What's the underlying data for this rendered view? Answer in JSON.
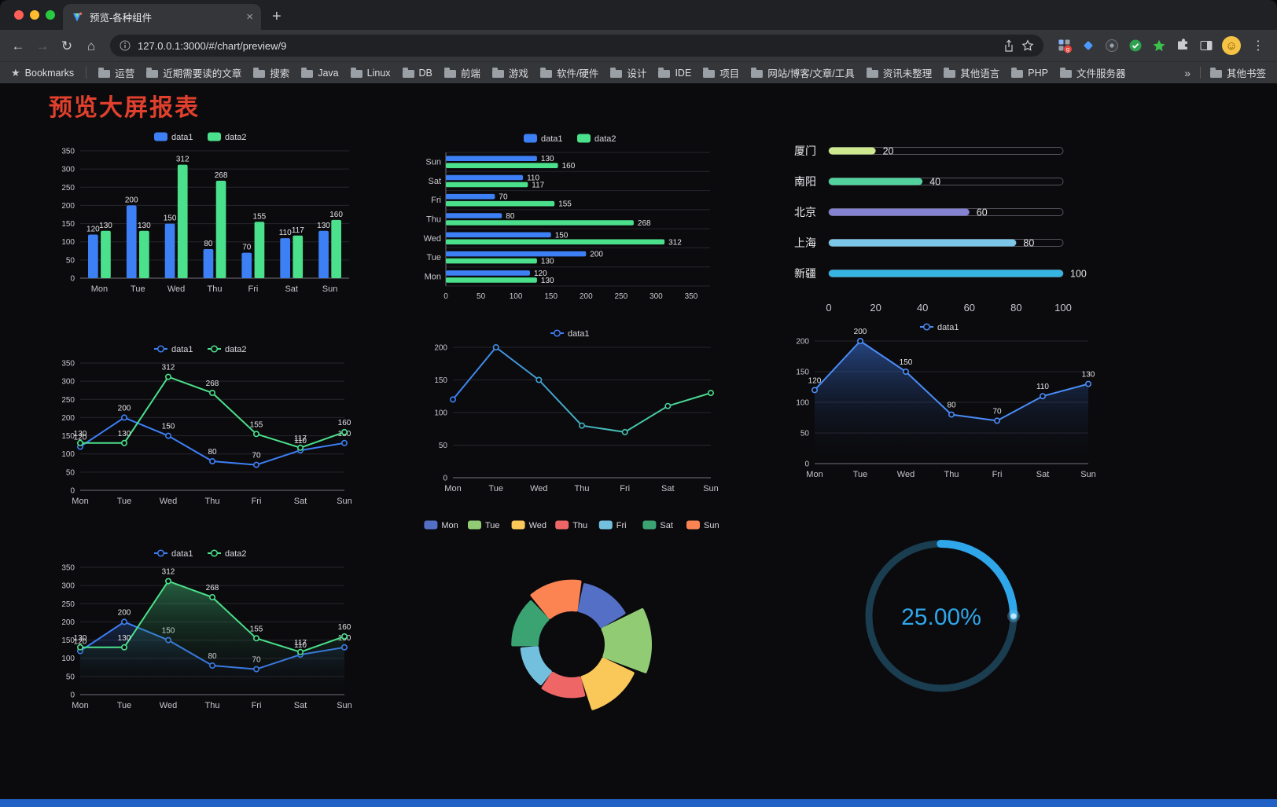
{
  "window": {
    "tab": {
      "title": "预览-各种组件"
    },
    "address": {
      "url": "127.0.0.1:3000/#/chart/preview/9"
    },
    "bookmarks_bar": {
      "label": "Bookmarks",
      "folders": [
        "运营",
        "近期需要读的文章",
        "搜索",
        "Java",
        "Linux",
        "DB",
        "前端",
        "游戏",
        "软件/硬件",
        "设计",
        "IDE",
        "项目",
        "网站/博客/文章/工具",
        "资讯未整理",
        "其他语言",
        "PHP",
        "文件服务器"
      ],
      "overflow": "»",
      "other": "其他书签"
    }
  },
  "icons": {
    "back": "←",
    "forward": "→",
    "reload": "↻",
    "home": "⌂",
    "tab_close": "×",
    "new_tab": "+",
    "menu": "⋮",
    "bookmarks_star": "★",
    "avatar_face": "☺"
  },
  "page": {
    "title": "预览大屏报表",
    "title_color": "#E0402C",
    "background": "#0B0B0E",
    "footer_color": "#2160C4"
  },
  "chart_data": [
    {
      "name": "grouped-bar",
      "type": "bar",
      "orientation": "vertical",
      "legend": [
        "data1",
        "data2"
      ],
      "categories": [
        "Mon",
        "Tue",
        "Wed",
        "Thu",
        "Fri",
        "Sat",
        "Sun"
      ],
      "series": [
        {
          "name": "data1",
          "color": "#3D7FF5",
          "values": [
            120,
            200,
            150,
            80,
            70,
            110,
            130
          ]
        },
        {
          "name": "data2",
          "color": "#4BE08B",
          "values": [
            130,
            130,
            312,
            268,
            155,
            117,
            160
          ]
        }
      ],
      "ylim": [
        0,
        350
      ],
      "yticks": [
        0,
        50,
        100,
        150,
        200,
        250,
        300,
        350
      ],
      "value_labels": true
    },
    {
      "name": "horizontal-bar",
      "type": "bar",
      "orientation": "horizontal",
      "legend": [
        "data1",
        "data2"
      ],
      "categories": [
        "Mon",
        "Tue",
        "Wed",
        "Thu",
        "Fri",
        "Sat",
        "Sun"
      ],
      "series": [
        {
          "name": "data1",
          "color": "#3D7FF5",
          "values": [
            120,
            200,
            150,
            80,
            70,
            110,
            130
          ]
        },
        {
          "name": "data2",
          "color": "#4BE08B",
          "values": [
            130,
            130,
            312,
            268,
            155,
            117,
            160
          ]
        }
      ],
      "xlim": [
        0,
        350
      ],
      "xticks": [
        0,
        50,
        100,
        150,
        200,
        250,
        300,
        350
      ],
      "value_labels": true
    },
    {
      "name": "progress-bars",
      "type": "progress",
      "categories": [
        "厦门",
        "南阳",
        "北京",
        "上海",
        "新疆"
      ],
      "values": [
        20,
        40,
        60,
        80,
        100
      ],
      "colors": [
        "#CDE88F",
        "#52D29F",
        "#8583D1",
        "#7CC7E8",
        "#36B5E3"
      ],
      "xlim": [
        0,
        100
      ],
      "xticks": [
        0,
        20,
        40,
        60,
        80,
        100
      ]
    },
    {
      "name": "dual-line",
      "type": "line",
      "legend": [
        "data1",
        "data2"
      ],
      "categories": [
        "Mon",
        "Tue",
        "Wed",
        "Thu",
        "Fri",
        "Sat",
        "Sun"
      ],
      "series": [
        {
          "name": "data1",
          "color": "#3D7FF5",
          "values": [
            120,
            200,
            150,
            80,
            70,
            110,
            130
          ]
        },
        {
          "name": "data2",
          "color": "#4BE08B",
          "values": [
            130,
            130,
            312,
            268,
            155,
            117,
            160
          ]
        }
      ],
      "ylim": [
        0,
        350
      ],
      "yticks": [
        0,
        50,
        100,
        150,
        200,
        250,
        300,
        350
      ],
      "value_labels": true
    },
    {
      "name": "gradient-line",
      "type": "line",
      "legend": [
        "data1"
      ],
      "categories": [
        "Mon",
        "Tue",
        "Wed",
        "Thu",
        "Fri",
        "Sat",
        "Sun"
      ],
      "series": [
        {
          "name": "data1",
          "gradient": [
            "#3D7FF5",
            "#4BE08B"
          ],
          "values": [
            120,
            200,
            150,
            80,
            70,
            110,
            130
          ]
        }
      ],
      "ylim": [
        0,
        200
      ],
      "yticks": [
        0,
        50,
        100,
        150,
        200
      ],
      "value_labels": false
    },
    {
      "name": "area-line",
      "type": "line",
      "legend": [
        "data1"
      ],
      "categories": [
        "Mon",
        "Tue",
        "Wed",
        "Thu",
        "Fri",
        "Sat",
        "Sun"
      ],
      "series": [
        {
          "name": "data1",
          "color": "#4A8CF7",
          "values": [
            120,
            200,
            150,
            80,
            70,
            110,
            130
          ],
          "area": "rgba(64,128,246,0.5)"
        }
      ],
      "ylim": [
        0,
        200
      ],
      "yticks": [
        0,
        50,
        100,
        150,
        200
      ],
      "value_labels": true
    },
    {
      "name": "dual-area-line",
      "type": "line",
      "legend": [
        "data1",
        "data2"
      ],
      "categories": [
        "Mon",
        "Tue",
        "Wed",
        "Thu",
        "Fri",
        "Sat",
        "Sun"
      ],
      "series": [
        {
          "name": "data1",
          "color": "#3D7FF5",
          "values": [
            120,
            200,
            150,
            80,
            70,
            110,
            130
          ],
          "area": "rgba(61,127,245,0.25)"
        },
        {
          "name": "data2",
          "color": "#4BE08B",
          "values": [
            130,
            130,
            312,
            268,
            155,
            117,
            160
          ],
          "area": "rgba(75,224,139,0.40)"
        }
      ],
      "ylim": [
        0,
        350
      ],
      "yticks": [
        0,
        50,
        100,
        150,
        200,
        250,
        300,
        350
      ],
      "value_labels": true
    },
    {
      "name": "rose-pie",
      "type": "rose",
      "legend": [
        "Mon",
        "Tue",
        "Wed",
        "Thu",
        "Fri",
        "Sat",
        "Sun"
      ],
      "values": [
        120,
        200,
        150,
        80,
        70,
        110,
        130
      ],
      "colors": [
        "#5470C6",
        "#91CC75",
        "#FAC858",
        "#EE6666",
        "#73C0DE",
        "#3BA272",
        "#FC8452"
      ],
      "start_angle": 10
    },
    {
      "name": "gauge",
      "type": "gauge",
      "value": 25,
      "label": "25.00%",
      "color": "#2FA6E9",
      "track_color": "#1A3D50"
    }
  ]
}
